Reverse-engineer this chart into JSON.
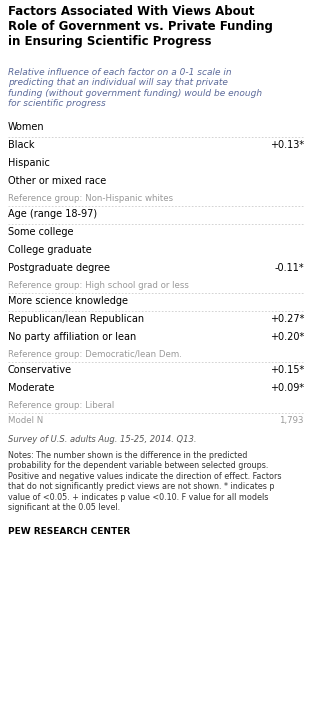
{
  "title": "Factors Associated With Views About\nRole of Government vs. Private Funding\nin Ensuring Scientific Progress",
  "subtitle": "Relative influence of each factor on a 0-1 scale in\npredicting that an individual will say that private\nfunding (without government funding) would be enough\nfor scientific progress",
  "rows": [
    {
      "label": "Women",
      "value": null,
      "bold": false,
      "color": "#000000",
      "sep_before": false,
      "sep_after": false,
      "is_ref": false,
      "is_section": false
    },
    {
      "label": "Black",
      "value": "+0.13*",
      "bold": false,
      "color": "#000000",
      "sep_before": true,
      "sep_after": false,
      "is_ref": false,
      "is_section": false
    },
    {
      "label": "Hispanic",
      "value": null,
      "bold": false,
      "color": "#000000",
      "sep_before": false,
      "sep_after": false,
      "is_ref": false,
      "is_section": false
    },
    {
      "label": "Other or mixed race",
      "value": null,
      "bold": false,
      "color": "#000000",
      "sep_before": false,
      "sep_after": false,
      "is_ref": false,
      "is_section": false
    },
    {
      "label": "Reference group: Non-Hispanic whites",
      "value": null,
      "bold": false,
      "color": "#999999",
      "sep_before": false,
      "sep_after": true,
      "is_ref": true,
      "is_section": false
    },
    {
      "label": "Age (range 18-97)",
      "value": null,
      "bold": false,
      "color": "#000000",
      "sep_before": false,
      "sep_after": true,
      "is_ref": false,
      "is_section": false
    },
    {
      "label": "Some college",
      "value": null,
      "bold": false,
      "color": "#000000",
      "sep_before": false,
      "sep_after": false,
      "is_ref": false,
      "is_section": false
    },
    {
      "label": "College graduate",
      "value": null,
      "bold": false,
      "color": "#000000",
      "sep_before": false,
      "sep_after": false,
      "is_ref": false,
      "is_section": false
    },
    {
      "label": "Postgraduate degree",
      "value": "-0.11*",
      "bold": false,
      "color": "#000000",
      "sep_before": false,
      "sep_after": false,
      "is_ref": false,
      "is_section": false
    },
    {
      "label": "Reference group: High school grad or less",
      "value": null,
      "bold": false,
      "color": "#999999",
      "sep_before": false,
      "sep_after": true,
      "is_ref": true,
      "is_section": false
    },
    {
      "label": "More science knowledge",
      "value": null,
      "bold": false,
      "color": "#000000",
      "sep_before": false,
      "sep_after": true,
      "is_ref": false,
      "is_section": true
    },
    {
      "label": "Republican/lean Republican",
      "value": "+0.27*",
      "bold": false,
      "color": "#000000",
      "sep_before": false,
      "sep_after": false,
      "is_ref": false,
      "is_section": false
    },
    {
      "label": "No party affiliation or lean",
      "value": "+0.20*",
      "bold": false,
      "color": "#000000",
      "sep_before": false,
      "sep_after": false,
      "is_ref": false,
      "is_section": false
    },
    {
      "label": "Reference group: Democratic/lean Dem.",
      "value": null,
      "bold": false,
      "color": "#999999",
      "sep_before": false,
      "sep_after": true,
      "is_ref": true,
      "is_section": false
    },
    {
      "label": "Conservative",
      "value": "+0.15*",
      "bold": false,
      "color": "#000000",
      "sep_before": false,
      "sep_after": false,
      "is_ref": false,
      "is_section": false
    },
    {
      "label": "Moderate",
      "value": "+0.09*",
      "bold": false,
      "color": "#000000",
      "sep_before": false,
      "sep_after": false,
      "is_ref": false,
      "is_section": false
    },
    {
      "label": "Reference group: Liberal",
      "value": null,
      "bold": false,
      "color": "#999999",
      "sep_before": false,
      "sep_after": true,
      "is_ref": true,
      "is_section": false
    },
    {
      "label": "Model N",
      "value": "1,793",
      "bold": false,
      "color": "#999999",
      "sep_before": false,
      "sep_after": false,
      "is_ref": true,
      "is_section": false
    }
  ],
  "footer_survey": "Survey of U.S. adults Aug. 15-25, 2014. Q13.",
  "footer_notes": "Notes: The number shown is the difference in the predicted\nprobability for the dependent variable between selected groups.\nPositive and negative values indicate the direction of effect. Factors\nthat do not significantly predict views are not shown. * indicates p\nvalue of <0.05. + indicates p value <0.10. F value for all models\nsignificant at the 0.05 level.",
  "footer_source": "PEW RESEARCH CENTER",
  "bg_color": "#ffffff",
  "title_color": "#000000",
  "subtitle_color": "#5b6a9a",
  "sep_color": "#cccccc",
  "ref_color": "#999999"
}
